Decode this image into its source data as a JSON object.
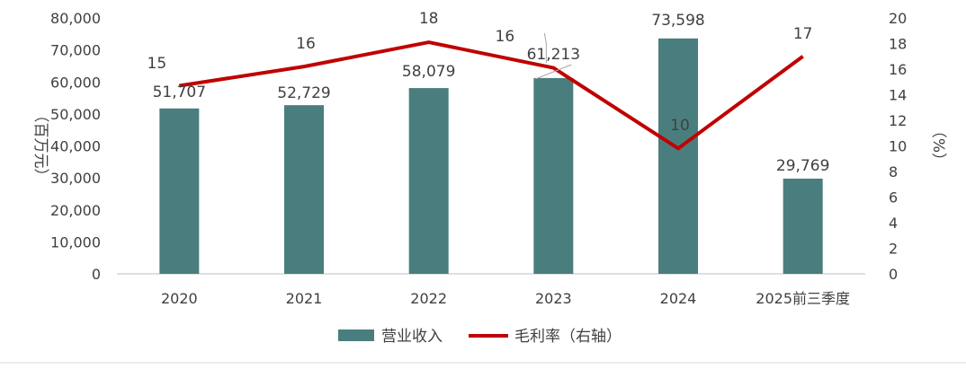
{
  "chart_data": {
    "type": "bar",
    "categories": [
      "2020",
      "2021",
      "2022",
      "2023",
      "2024",
      "2025前三季度"
    ],
    "series": [
      {
        "name": "营业收入",
        "type": "bar",
        "axis": "left",
        "values": [
          51707,
          52729,
          58079,
          61213,
          73598,
          29769
        ],
        "labels": [
          "51,707",
          "52,729",
          "58,079",
          "61,213",
          "73,598",
          "29,769"
        ]
      },
      {
        "name": "毛利率（右轴）",
        "type": "line",
        "axis": "right",
        "values": [
          14.7,
          16.2,
          18.1,
          16.1,
          9.8,
          17.0
        ],
        "labels": [
          "15",
          "16",
          "18",
          "16",
          "10",
          "17"
        ]
      }
    ],
    "y_left": {
      "label": "（百万元）",
      "ylim": [
        0,
        80000
      ],
      "ticks": [
        "0",
        "10,000",
        "20,000",
        "30,000",
        "40,000",
        "50,000",
        "60,000",
        "70,000",
        "80,000"
      ]
    },
    "y_right": {
      "label": "（%）",
      "ylim": [
        0,
        20
      ],
      "ticks": [
        "0",
        "2",
        "4",
        "6",
        "8",
        "10",
        "12",
        "14",
        "16",
        "18",
        "20"
      ]
    },
    "legend_position": "bottom",
    "grid": false,
    "colors": {
      "bar": "#4a7e7e",
      "line": "#c00000",
      "text": "#404040",
      "axis": "#bfbfbf"
    }
  }
}
